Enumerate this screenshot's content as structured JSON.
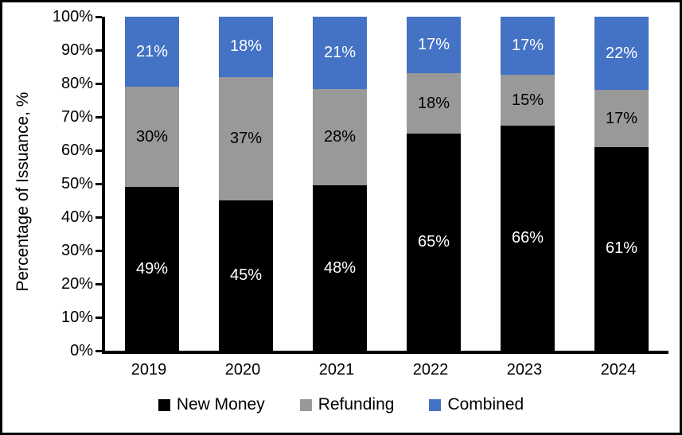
{
  "chart_data": {
    "type": "bar",
    "stacked": true,
    "categories": [
      "2019",
      "2020",
      "2021",
      "2022",
      "2023",
      "2024"
    ],
    "series": [
      {
        "name": "New Money",
        "color": "#000000",
        "label_color": "#ffffff",
        "values": [
          49,
          45,
          48,
          65,
          66,
          61
        ]
      },
      {
        "name": "Refunding",
        "color": "#999999",
        "label_color": "#000000",
        "values": [
          30,
          37,
          28,
          18,
          15,
          17
        ]
      },
      {
        "name": "Combined",
        "color": "#4472C4",
        "label_color": "#ffffff",
        "values": [
          21,
          18,
          21,
          17,
          17,
          22
        ]
      }
    ],
    "title": "",
    "xlabel": "",
    "ylabel": "Percentage of Issuance, %",
    "ylim": [
      0,
      100
    ],
    "ytick_step": 10,
    "ytick_suffix": "%",
    "value_suffix": "%",
    "grid": false,
    "legend_position": "bottom",
    "axis_color": "#000000"
  }
}
